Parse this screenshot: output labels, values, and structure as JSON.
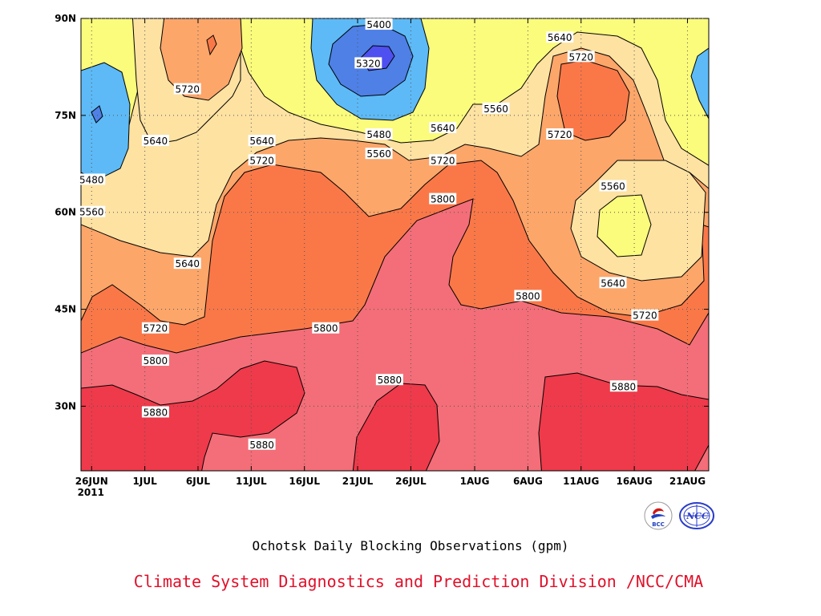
{
  "chart_data": {
    "type": "heatmap",
    "subtype": "filled-contour",
    "title": "Ochotsk Daily Blocking Observations (gpm)",
    "x_ticks": [
      "26JUN",
      "1JUL",
      "6JUL",
      "11JUL",
      "16JUL",
      "21JUL",
      "26JUL",
      "1AUG",
      "6AUG",
      "11AUG",
      "16AUG",
      "21AUG"
    ],
    "x_year_label": "2011",
    "y_ticks": [
      "90N",
      "75N",
      "60N",
      "45N",
      "30N"
    ],
    "ylim": [
      20,
      90
    ],
    "grid": true,
    "contour_levels": [
      5320,
      5400,
      5480,
      5560,
      5640,
      5720,
      5800,
      5880
    ],
    "level_colors": {
      "below_5320": "#4e50f0",
      "5320_5400": "#4e80e6",
      "5400_5480": "#5dbaf6",
      "5480_5560": "#fbfb7c",
      "5560_5640": "#fde2a2",
      "5640_5720": "#fca66a",
      "5720_5800": "#fa7848",
      "5800_5880": "#f36e78",
      "above_5880": "#ee3a4a"
    },
    "contour_labels": [
      {
        "text": "5400",
        "date": "23JUL",
        "lat": 89
      },
      {
        "text": "5320",
        "date": "22JUL",
        "lat": 83
      },
      {
        "text": "5480",
        "date": "23JUL",
        "lat": 72
      },
      {
        "text": "5560",
        "date": "23JUL",
        "lat": 69
      },
      {
        "text": "5640",
        "date": "29JUL",
        "lat": 73
      },
      {
        "text": "5720",
        "date": "29JUL",
        "lat": 68
      },
      {
        "text": "5560",
        "date": "3AUG",
        "lat": 76
      },
      {
        "text": "5640",
        "date": "9AUG",
        "lat": 87
      },
      {
        "text": "5720",
        "date": "11AUG",
        "lat": 84
      },
      {
        "text": "5720",
        "date": "9AUG",
        "lat": 72
      },
      {
        "text": "5560",
        "date": "14AUG",
        "lat": 64
      },
      {
        "text": "5640",
        "date": "14AUG",
        "lat": 49
      },
      {
        "text": "5720",
        "date": "17AUG",
        "lat": 44
      },
      {
        "text": "5880",
        "date": "15AUG",
        "lat": 33
      },
      {
        "text": "5800",
        "date": "6AUG",
        "lat": 47
      },
      {
        "text": "5800",
        "date": "29JUL",
        "lat": 62
      },
      {
        "text": "5880",
        "date": "24JUL",
        "lat": 34
      },
      {
        "text": "5800",
        "date": "18JUL",
        "lat": 42
      },
      {
        "text": "5720",
        "date": "12JUL",
        "lat": 68
      },
      {
        "text": "5640",
        "date": "12JUL",
        "lat": 71
      },
      {
        "text": "5880",
        "date": "12JUL",
        "lat": 24
      },
      {
        "text": "5720",
        "date": "5JUL",
        "lat": 79
      },
      {
        "text": "5640",
        "date": "2JUL",
        "lat": 71
      },
      {
        "text": "5640",
        "date": "5JUL",
        "lat": 52
      },
      {
        "text": "5720",
        "date": "2JUL",
        "lat": 42
      },
      {
        "text": "5800",
        "date": "2JUL",
        "lat": 37
      },
      {
        "text": "5880",
        "date": "2JUL",
        "lat": 29
      },
      {
        "text": "5480",
        "date": "26JUN",
        "lat": 65
      },
      {
        "text": "5560",
        "date": "26JUN",
        "lat": 60
      }
    ]
  },
  "footer": {
    "title": "Ochotsk Daily Blocking Observations (gpm)",
    "credit": "Climate System Diagnostics and Prediction Division /NCC/CMA"
  },
  "logos": {
    "bcc_text": "BCC",
    "ncc_text": "NCC"
  }
}
